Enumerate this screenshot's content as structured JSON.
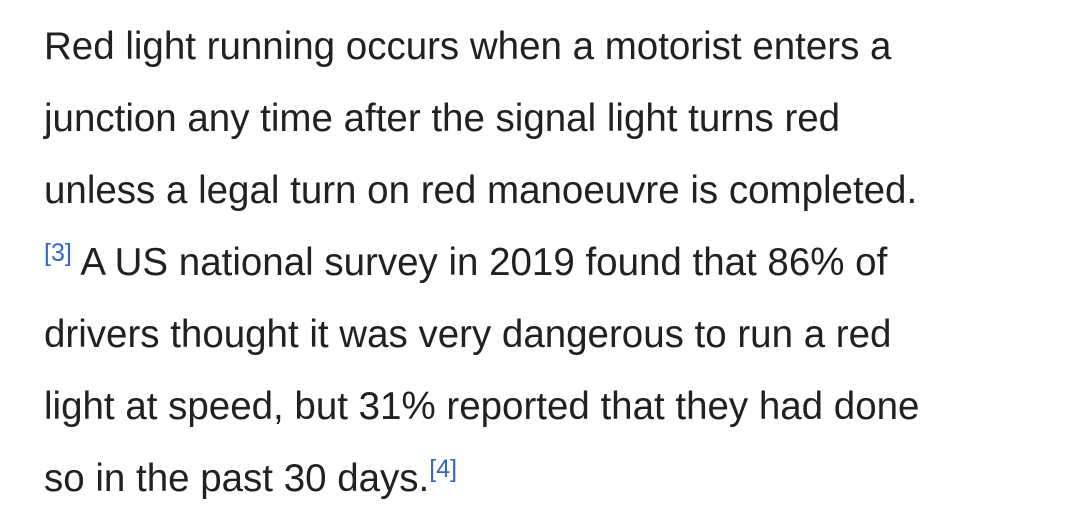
{
  "paragraph": {
    "lines": [
      [
        {
          "text": "Red light running occurs when a motorist enters a"
        }
      ],
      [
        {
          "text": "junction any time after the signal light turns red"
        }
      ],
      [
        {
          "text": "unless a legal turn on red manoeuvre is completed."
        }
      ],
      [
        {
          "ref": "[3]"
        },
        {
          "text": " A US national survey in 2019 found that 86% of"
        }
      ],
      [
        {
          "text": "drivers thought it was very dangerous to run a red"
        }
      ],
      [
        {
          "text": "light at speed, but 31% reported that they had done"
        }
      ],
      [
        {
          "text": "so in the past 30 days."
        },
        {
          "ref": "[4]"
        }
      ]
    ]
  }
}
